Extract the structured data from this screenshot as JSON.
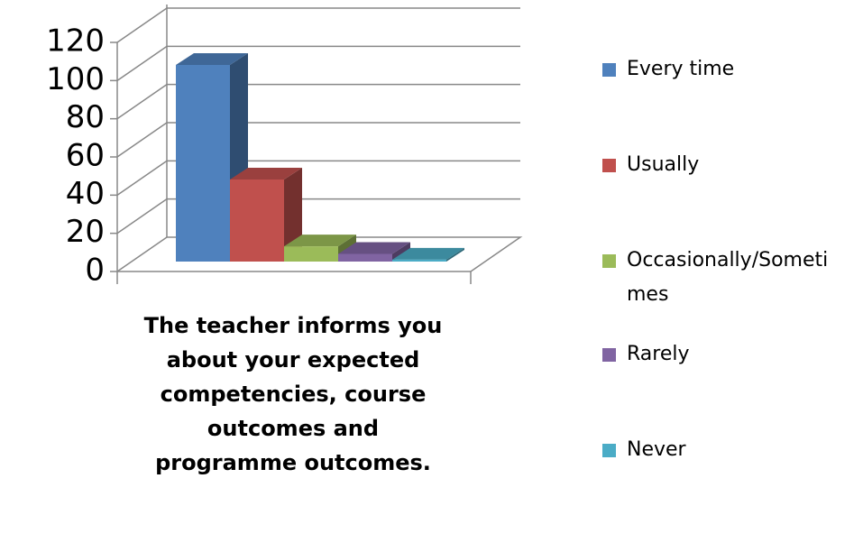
{
  "chart_data": {
    "type": "bar3d",
    "categories": [
      "The teacher informs you about your expected competencies, course outcomes and programme outcomes."
    ],
    "series": [
      {
        "name": "Every time",
        "color": "#4f81bd",
        "values": [
          103
        ]
      },
      {
        "name": "Usually",
        "color": "#c0504d",
        "values": [
          43
        ]
      },
      {
        "name": "Occasionally/Sometimes",
        "color": "#9bbb59",
        "values": [
          8
        ]
      },
      {
        "name": "Rarely",
        "color": "#8064a2",
        "values": [
          4
        ]
      },
      {
        "name": "Never",
        "color": "#4bacc6",
        "values": [
          1
        ]
      }
    ],
    "ylim": [
      0,
      120
    ],
    "yticks": [
      0,
      20,
      40,
      60,
      80,
      100,
      120
    ],
    "grid": true,
    "legend": "right"
  }
}
